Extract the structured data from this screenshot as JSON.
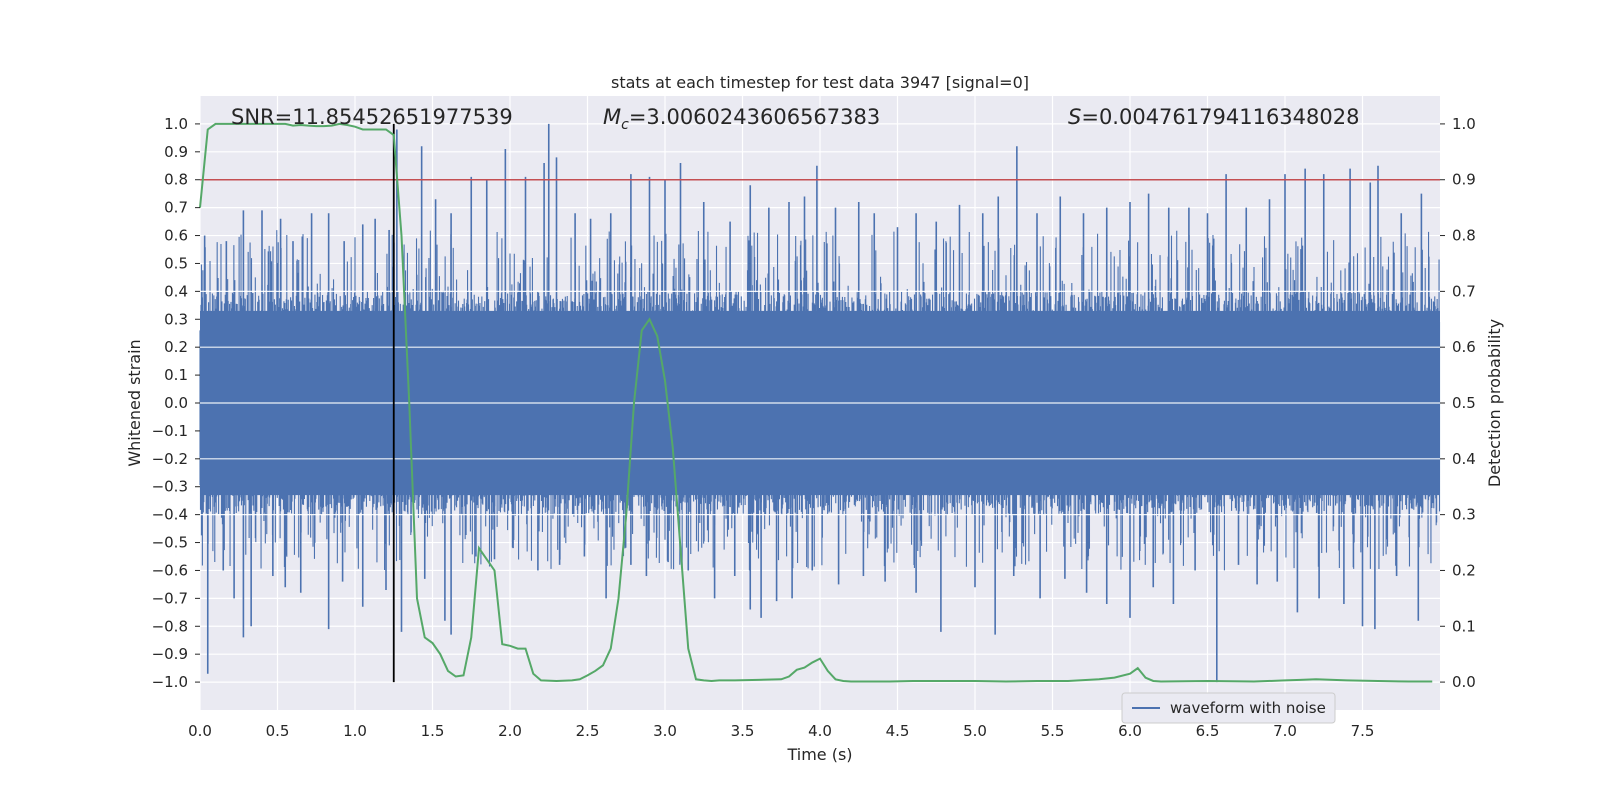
{
  "chart_data": {
    "type": "line",
    "title": "stats at each timestep for test data 3947 [signal=0]",
    "xlabel": "Time (s)",
    "ylabel": "Whitened strain",
    "y2label": "Detection probability",
    "xlim": [
      0.0,
      8.0
    ],
    "ylim": [
      -1.1,
      1.1
    ],
    "y2lim": [
      -0.05,
      1.05
    ],
    "xticks": [
      "0.0",
      "0.5",
      "1.0",
      "1.5",
      "2.0",
      "2.5",
      "3.0",
      "3.5",
      "4.0",
      "4.5",
      "5.0",
      "5.5",
      "6.0",
      "6.5",
      "7.0",
      "7.5"
    ],
    "yticks": [
      "1.0",
      "0.9",
      "0.8",
      "0.7",
      "0.6",
      "0.5",
      "0.4",
      "0.3",
      "0.2",
      "0.1",
      "0.0",
      "−0.1",
      "−0.2",
      "−0.3",
      "−0.4",
      "−0.5",
      "−0.6",
      "−0.7",
      "−0.8",
      "−0.9",
      "−1.0"
    ],
    "y2ticks": [
      "1.0",
      "0.9",
      "0.8",
      "0.7",
      "0.6",
      "0.5",
      "0.4",
      "0.3",
      "0.2",
      "0.1",
      "0.0"
    ],
    "grid": true,
    "legend": {
      "entries": [
        "waveform with noise"
      ],
      "position": "lower-right"
    },
    "annotations": {
      "snr_text": "SNR=11.85452651977539",
      "mc_label": "M",
      "mc_sub": "c",
      "mc_value": "=3.0060243606567383",
      "s_label": "S",
      "s_value": "=0.004761794116348028"
    },
    "threshold_line": {
      "value": 0.9,
      "axis": "y2",
      "color": "#c44e52"
    },
    "marker_line": {
      "x": 1.25,
      "color": "#000000"
    },
    "waveform": {
      "name": "waveform with noise",
      "color": "#4c72b0",
      "duration_s": 8.0,
      "baseline_amplitude": 0.4,
      "peaks_positive": [
        [
          0.03,
          0.6
        ],
        [
          0.17,
          0.58
        ],
        [
          0.28,
          0.69
        ],
        [
          0.4,
          0.69
        ],
        [
          0.52,
          0.66
        ],
        [
          0.6,
          0.58
        ],
        [
          0.72,
          0.68
        ],
        [
          0.83,
          0.68
        ],
        [
          0.93,
          0.58
        ],
        [
          1.05,
          0.64
        ],
        [
          1.13,
          0.66
        ],
        [
          1.22,
          0.62
        ],
        [
          1.27,
          0.98
        ],
        [
          1.43,
          0.92
        ],
        [
          1.52,
          0.73
        ],
        [
          1.62,
          0.68
        ],
        [
          1.75,
          0.81
        ],
        [
          1.85,
          0.8
        ],
        [
          1.97,
          0.91
        ],
        [
          2.1,
          0.81
        ],
        [
          2.22,
          0.86
        ],
        [
          2.25,
          1.0
        ],
        [
          2.3,
          0.88
        ],
        [
          2.42,
          0.68
        ],
        [
          2.52,
          0.66
        ],
        [
          2.65,
          0.68
        ],
        [
          2.78,
          0.82
        ],
        [
          2.9,
          0.81
        ],
        [
          3.0,
          0.8
        ],
        [
          3.1,
          0.86
        ],
        [
          3.25,
          0.72
        ],
        [
          3.42,
          0.65
        ],
        [
          3.55,
          0.78
        ],
        [
          3.67,
          0.7
        ],
        [
          3.8,
          0.72
        ],
        [
          3.9,
          0.74
        ],
        [
          3.98,
          0.85
        ],
        [
          4.1,
          0.7
        ],
        [
          4.25,
          0.72
        ],
        [
          4.35,
          0.68
        ],
        [
          4.5,
          0.63
        ],
        [
          4.62,
          0.68
        ],
        [
          4.75,
          0.65
        ],
        [
          4.9,
          0.71
        ],
        [
          5.05,
          0.68
        ],
        [
          5.15,
          0.74
        ],
        [
          5.27,
          0.92
        ],
        [
          5.4,
          0.68
        ],
        [
          5.55,
          0.74
        ],
        [
          5.7,
          0.68
        ],
        [
          5.85,
          0.7
        ],
        [
          6.0,
          0.72
        ],
        [
          6.12,
          0.75
        ],
        [
          6.25,
          0.7
        ],
        [
          6.38,
          0.7
        ],
        [
          6.5,
          0.68
        ],
        [
          6.62,
          0.82
        ],
        [
          6.75,
          0.7
        ],
        [
          6.9,
          0.73
        ],
        [
          7.0,
          0.82
        ],
        [
          7.13,
          0.84
        ],
        [
          7.25,
          0.82
        ],
        [
          7.42,
          0.84
        ],
        [
          7.55,
          0.79
        ],
        [
          7.6,
          0.85
        ],
        [
          7.75,
          0.68
        ],
        [
          7.88,
          0.75
        ]
      ],
      "peaks_negative": [
        [
          0.05,
          -0.97
        ],
        [
          0.15,
          -0.6
        ],
        [
          0.22,
          -0.7
        ],
        [
          0.28,
          -0.84
        ],
        [
          0.33,
          -0.8
        ],
        [
          0.47,
          -0.62
        ],
        [
          0.55,
          -0.66
        ],
        [
          0.65,
          -0.68
        ],
        [
          0.83,
          -0.81
        ],
        [
          0.92,
          -0.64
        ],
        [
          1.05,
          -0.73
        ],
        [
          1.2,
          -0.67
        ],
        [
          1.3,
          -0.82
        ],
        [
          1.45,
          -0.63
        ],
        [
          1.58,
          -0.78
        ],
        [
          1.62,
          -0.83
        ],
        [
          1.78,
          -0.55
        ],
        [
          1.9,
          -0.56
        ],
        [
          2.02,
          -0.52
        ],
        [
          2.18,
          -0.6
        ],
        [
          2.32,
          -0.58
        ],
        [
          2.48,
          -0.55
        ],
        [
          2.62,
          -0.7
        ],
        [
          2.78,
          -0.58
        ],
        [
          2.88,
          -0.62
        ],
        [
          3.02,
          -0.57
        ],
        [
          3.15,
          -0.6
        ],
        [
          3.32,
          -0.7
        ],
        [
          3.45,
          -0.62
        ],
        [
          3.55,
          -0.74
        ],
        [
          3.62,
          -0.77
        ],
        [
          3.72,
          -0.71
        ],
        [
          3.82,
          -0.7
        ],
        [
          3.95,
          -0.6
        ],
        [
          4.12,
          -0.65
        ],
        [
          4.28,
          -0.62
        ],
        [
          4.42,
          -0.64
        ],
        [
          4.62,
          -0.68
        ],
        [
          4.78,
          -0.82
        ],
        [
          5.0,
          -0.66
        ],
        [
          5.13,
          -0.83
        ],
        [
          5.25,
          -0.62
        ],
        [
          5.42,
          -0.7
        ],
        [
          5.58,
          -0.63
        ],
        [
          5.72,
          -0.68
        ],
        [
          5.85,
          -0.72
        ],
        [
          6.0,
          -0.77
        ],
        [
          6.15,
          -0.66
        ],
        [
          6.28,
          -0.72
        ],
        [
          6.42,
          -0.6
        ],
        [
          6.56,
          -1.0
        ],
        [
          6.7,
          -0.58
        ],
        [
          6.82,
          -0.65
        ],
        [
          6.95,
          -0.64
        ],
        [
          7.08,
          -0.75
        ],
        [
          7.22,
          -0.7
        ],
        [
          7.38,
          -0.72
        ],
        [
          7.5,
          -0.8
        ],
        [
          7.58,
          -0.81
        ],
        [
          7.72,
          -0.62
        ],
        [
          7.86,
          -0.78
        ]
      ]
    },
    "probability": {
      "name": "detection probability",
      "color": "#55a868",
      "x": [
        0.0,
        0.05,
        0.1,
        0.15,
        0.2,
        0.25,
        0.3,
        0.35,
        0.4,
        0.45,
        0.5,
        0.55,
        0.6,
        0.65,
        0.7,
        0.75,
        0.8,
        0.85,
        0.9,
        0.95,
        1.0,
        1.05,
        1.1,
        1.15,
        1.2,
        1.25,
        1.3,
        1.35,
        1.4,
        1.45,
        1.5,
        1.55,
        1.6,
        1.65,
        1.7,
        1.75,
        1.8,
        1.85,
        1.9,
        1.95,
        2.0,
        2.05,
        2.1,
        2.15,
        2.2,
        2.3,
        2.4,
        2.45,
        2.5,
        2.55,
        2.6,
        2.65,
        2.7,
        2.75,
        2.8,
        2.85,
        2.9,
        2.95,
        3.0,
        3.05,
        3.1,
        3.15,
        3.2,
        3.25,
        3.3,
        3.35,
        3.45,
        3.6,
        3.75,
        3.8,
        3.85,
        3.9,
        3.95,
        4.0,
        4.05,
        4.1,
        4.15,
        4.2,
        4.3,
        4.45,
        4.6,
        4.8,
        5.0,
        5.2,
        5.4,
        5.5,
        5.6,
        5.8,
        5.9,
        6.0,
        6.05,
        6.1,
        6.15,
        6.2,
        6.5,
        6.8,
        7.0,
        7.1,
        7.2,
        7.4,
        7.6,
        7.8,
        7.95
      ],
      "values": [
        0.85,
        0.99,
        1.0,
        1.0,
        1.0,
        1.0,
        1.0,
        1.0,
        1.0,
        1.0,
        1.0,
        1.0,
        0.997,
        0.998,
        0.997,
        0.996,
        0.996,
        0.997,
        1.0,
        0.998,
        0.995,
        0.99,
        0.99,
        0.99,
        0.99,
        0.98,
        0.8,
        0.5,
        0.15,
        0.08,
        0.07,
        0.05,
        0.02,
        0.01,
        0.012,
        0.08,
        0.24,
        0.22,
        0.2,
        0.068,
        0.065,
        0.06,
        0.06,
        0.015,
        0.003,
        0.002,
        0.003,
        0.005,
        0.012,
        0.02,
        0.03,
        0.06,
        0.15,
        0.3,
        0.5,
        0.63,
        0.65,
        0.62,
        0.54,
        0.42,
        0.24,
        0.06,
        0.005,
        0.003,
        0.002,
        0.003,
        0.003,
        0.004,
        0.005,
        0.01,
        0.022,
        0.026,
        0.035,
        0.042,
        0.02,
        0.005,
        0.002,
        0.001,
        0.001,
        0.001,
        0.002,
        0.002,
        0.002,
        0.001,
        0.002,
        0.002,
        0.002,
        0.005,
        0.008,
        0.015,
        0.025,
        0.008,
        0.002,
        0.001,
        0.002,
        0.001,
        0.003,
        0.004,
        0.005,
        0.003,
        0.002,
        0.001,
        0.001
      ]
    }
  }
}
